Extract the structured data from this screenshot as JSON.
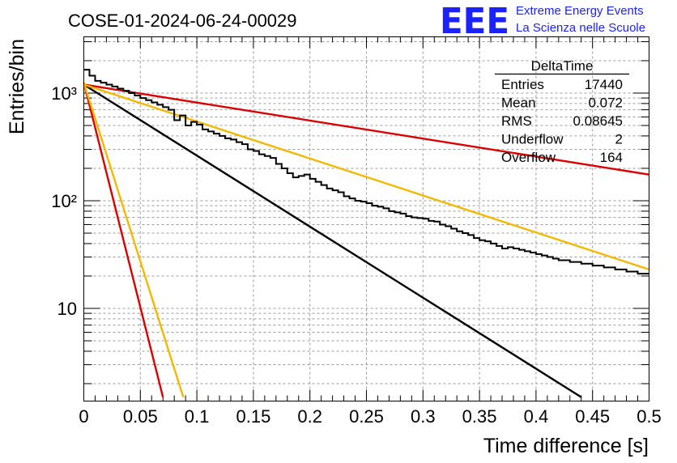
{
  "header": {
    "run_title": "COSE-01-2024-06-24-00029",
    "logo_text": "EEE",
    "logo_line1": "Extreme Energy Events",
    "logo_line2": "La Scienza nelle Scuole",
    "logo_color": "#1a22ff"
  },
  "stats": {
    "title": "DeltaTime",
    "rows": [
      {
        "label": "Entries",
        "value": "17440"
      },
      {
        "label": "Mean",
        "value": "0.072"
      },
      {
        "label": "RMS",
        "value": "0.08645"
      },
      {
        "label": "Underflow",
        "value": "2"
      },
      {
        "label": "Overflow",
        "value": "164"
      }
    ]
  },
  "chart_data": {
    "type": "line",
    "title": "COSE-01-2024-06-24-00029",
    "xlabel": "Time difference [s]",
    "ylabel": "Entries/bin",
    "xlim": [
      0,
      0.5
    ],
    "ylim": [
      1.5,
      3200
    ],
    "ylog": true,
    "grid": true,
    "x_ticks": [
      "0",
      "0.05",
      "0.1",
      "0.15",
      "0.2",
      "0.25",
      "0.3",
      "0.35",
      "0.4",
      "0.45",
      "0.5"
    ],
    "y_ticks": [
      "10",
      "10²",
      "10³"
    ],
    "histogram": {
      "bin_width": 0.005,
      "color": "#000000",
      "counts": [
        1650,
        1450,
        1300,
        1250,
        1200,
        1150,
        1100,
        1050,
        1000,
        950,
        900,
        860,
        820,
        780,
        740,
        700,
        560,
        620,
        500,
        540,
        510,
        460,
        440,
        420,
        400,
        380,
        370,
        350,
        335,
        300,
        290,
        270,
        260,
        250,
        220,
        200,
        180,
        165,
        170,
        175,
        160,
        150,
        140,
        130,
        125,
        120,
        110,
        105,
        100,
        98,
        95,
        90,
        88,
        85,
        80,
        78,
        76,
        72,
        70,
        69,
        68,
        65,
        64,
        60,
        58,
        55,
        52,
        50,
        48,
        45,
        43,
        42,
        40,
        38,
        36,
        37,
        36,
        35,
        34,
        33,
        32,
        31,
        30,
        29,
        28,
        28,
        27,
        27,
        26,
        26,
        25,
        25,
        24,
        24,
        23,
        23,
        22,
        22,
        21,
        21
      ]
    },
    "series": [
      {
        "color": "#000000",
        "x": [
          0,
          0.44
        ],
        "y": [
          1200,
          1.5
        ]
      },
      {
        "color": "#dd0000",
        "x": [
          0,
          0.5
        ],
        "y": [
          1200,
          175
        ]
      },
      {
        "color": "#f5b800",
        "x": [
          0,
          0.5
        ],
        "y": [
          1200,
          23
        ]
      },
      {
        "color": "#dd0000",
        "x": [
          0,
          0.07
        ],
        "y": [
          1250,
          1.5
        ]
      },
      {
        "color": "#f5b800",
        "x": [
          0,
          0.088
        ],
        "y": [
          1250,
          1.5
        ]
      }
    ]
  }
}
